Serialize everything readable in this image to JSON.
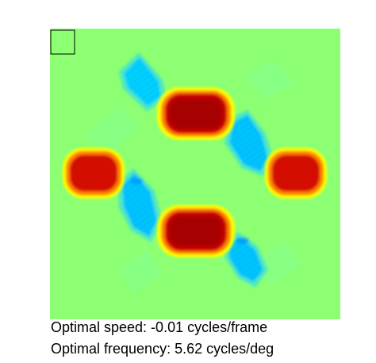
{
  "chart_data": {
    "type": "heatmap",
    "title": "",
    "xlabel": "",
    "ylabel": "",
    "colormap": "jet",
    "colors": {
      "background": "#8cff73",
      "positive_core": "#d40000",
      "positive_mid": "#ff8000",
      "positive_edge": "#ffff00",
      "negative_core": "#00c8ff",
      "negative_edge": "#50e8c0",
      "marker_box": "#000000"
    },
    "grid": false,
    "legend": false,
    "positive_lobes": [
      "top-center",
      "bottom-center",
      "left",
      "right"
    ],
    "negative_lobes": [
      "upper-left",
      "center-left",
      "center-right",
      "lower-right"
    ],
    "annotations": [
      "Optimal speed: -0.01 cycles/frame",
      "Optimal frequency: 5.62 cycles/deg"
    ]
  },
  "captions": {
    "speed": "Optimal speed: -0.01 cycles/frame",
    "frequency": "Optimal frequency: 5.62 cycles/deg"
  }
}
